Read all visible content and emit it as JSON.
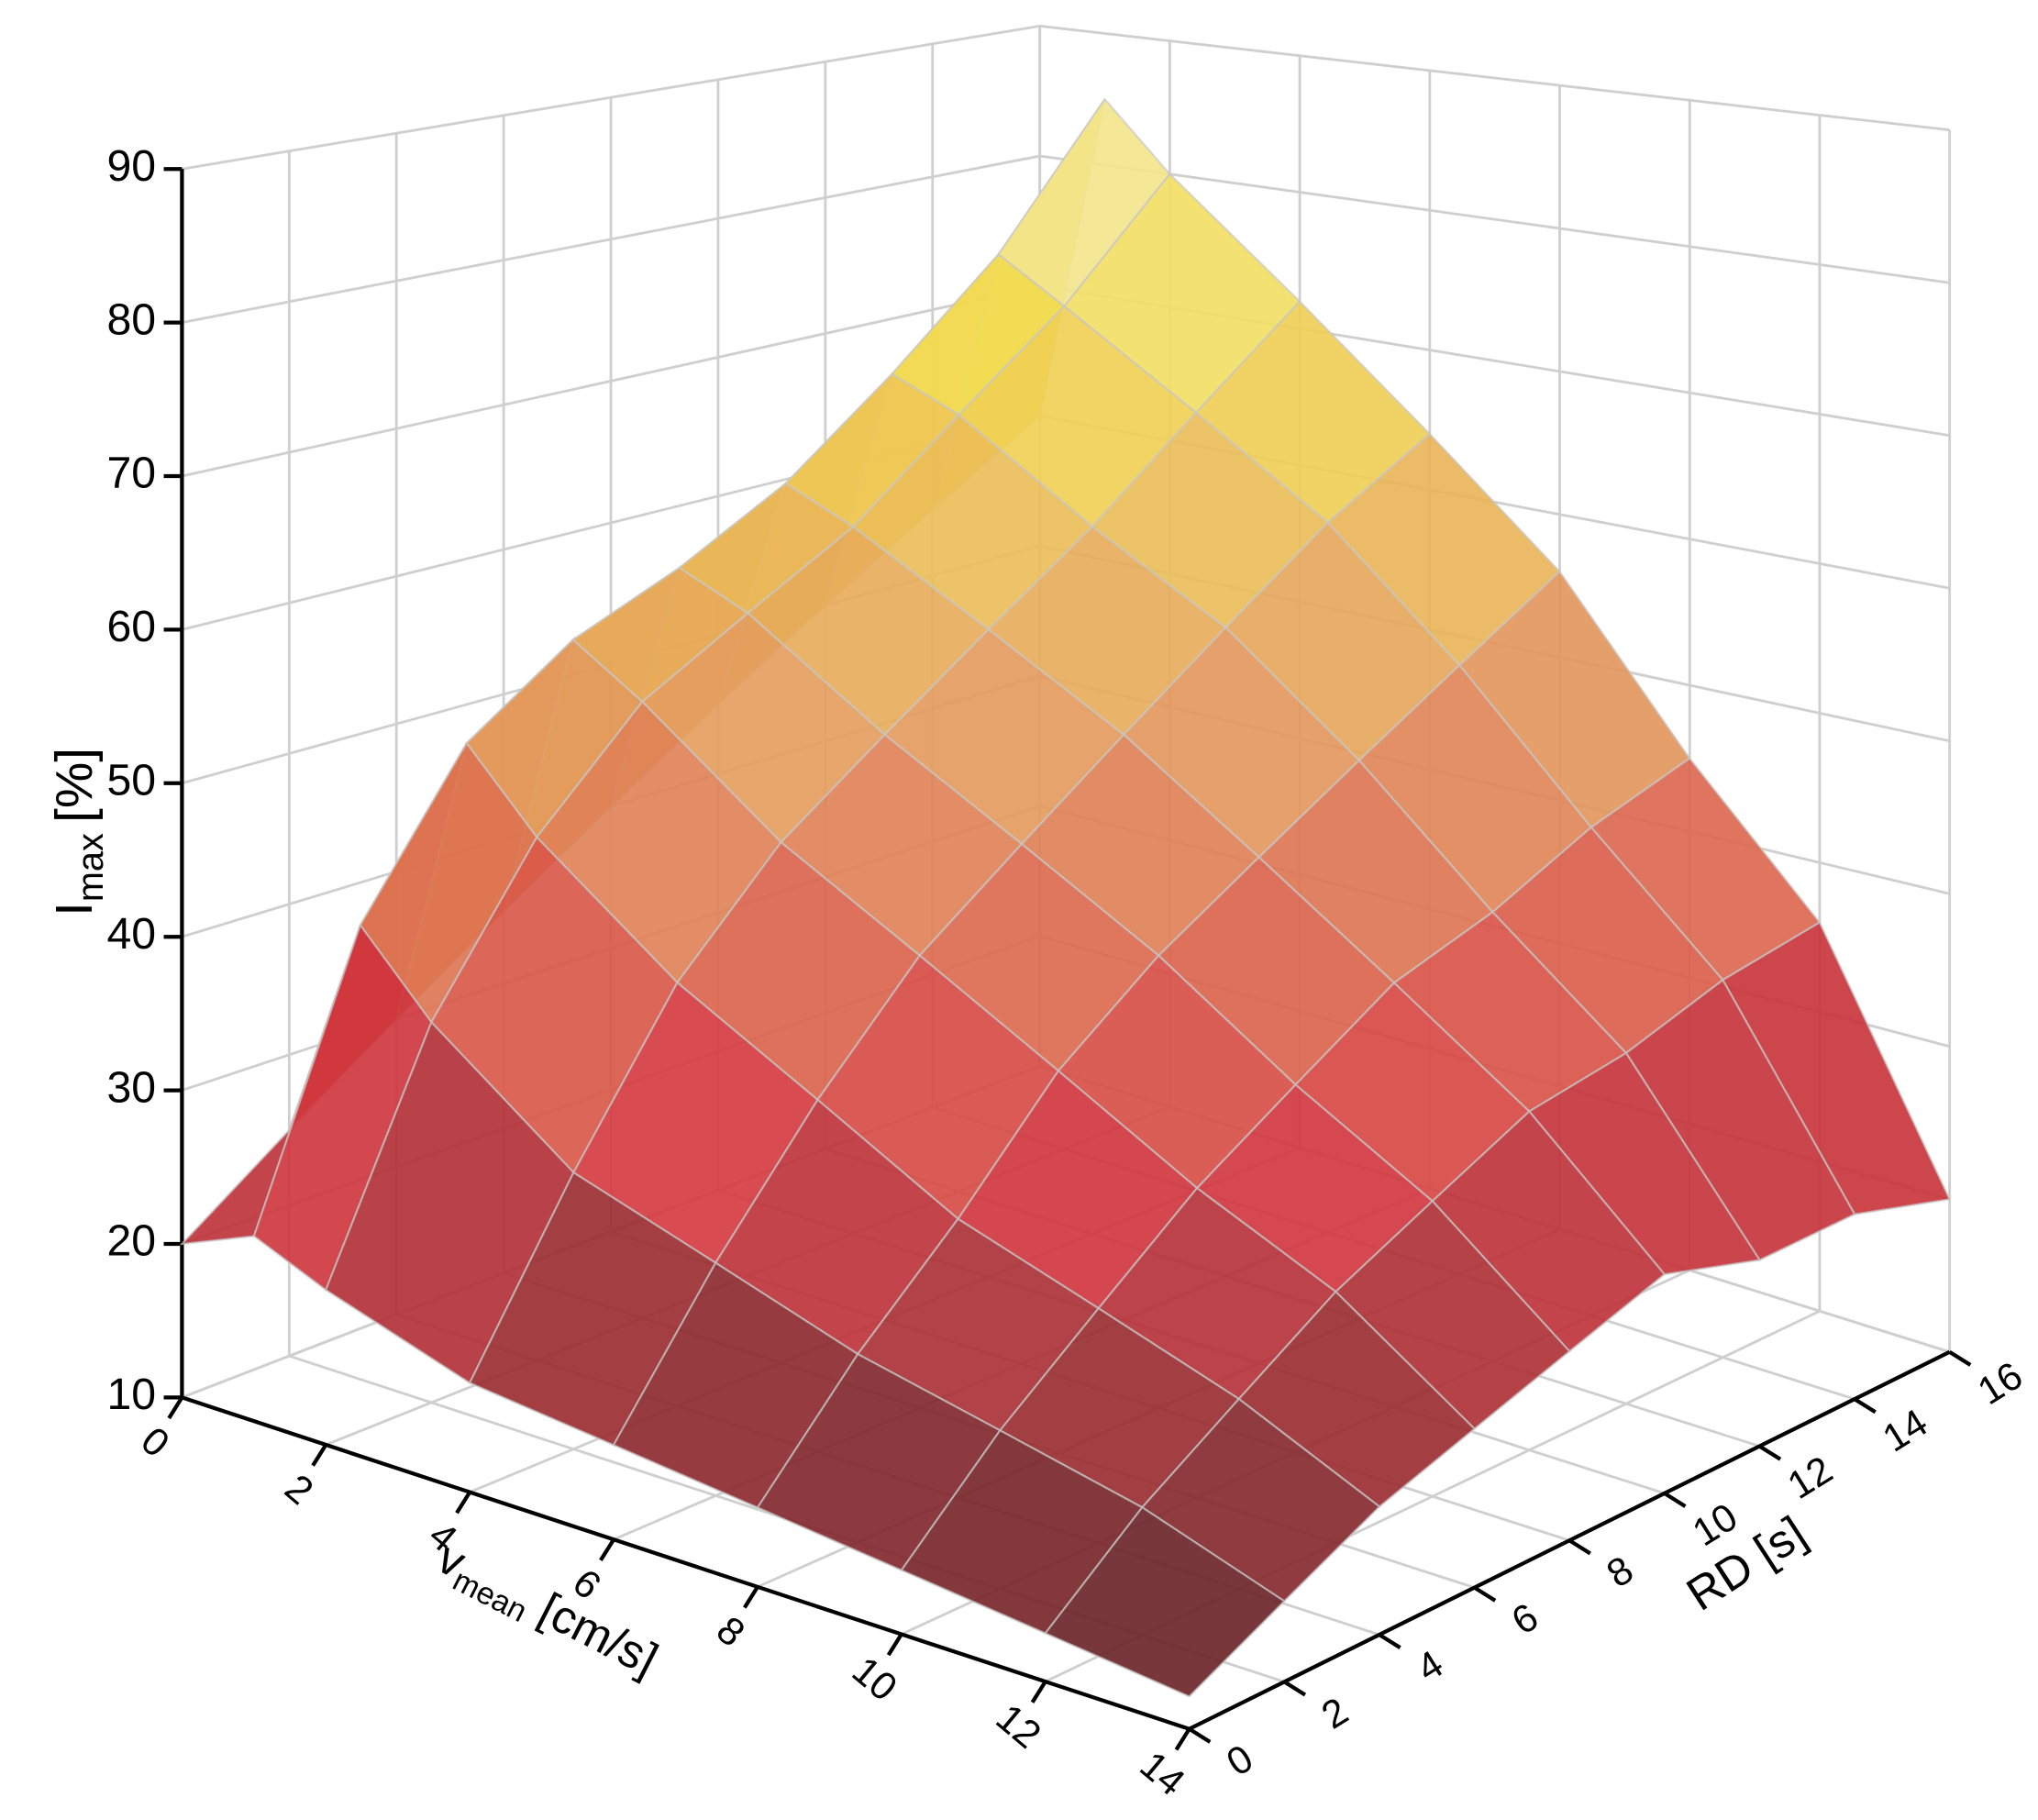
{
  "chart_data": {
    "type": "surface",
    "x_label": {
      "main": "v",
      "sub": "mean",
      "unit": "[cm/s]"
    },
    "y_label": "RD [s]",
    "z_label": {
      "main": "I",
      "sub": "max",
      "unit": "[%]"
    },
    "x": [
      0,
      1,
      2,
      4,
      6,
      8,
      10,
      12,
      14
    ],
    "y": [
      0,
      2,
      4,
      6,
      8,
      10,
      12,
      14,
      16
    ],
    "z": [
      [
        20,
        22,
        20,
        17,
        16,
        15,
        14,
        13,
        12
      ],
      [
        25,
        40,
        35,
        28,
        25,
        22,
        20,
        18,
        15
      ],
      [
        30,
        50,
        45,
        38,
        33,
        28,
        25,
        22,
        18
      ],
      [
        35,
        55,
        52,
        45,
        40,
        35,
        30,
        26,
        20
      ],
      [
        40,
        58,
        56,
        50,
        45,
        40,
        34,
        29,
        22
      ],
      [
        45,
        62,
        60,
        55,
        50,
        44,
        38,
        32,
        24
      ],
      [
        50,
        68,
        66,
        60,
        55,
        48,
        40,
        33,
        22
      ],
      [
        55,
        75,
        72,
        66,
        60,
        52,
        43,
        35,
        22
      ],
      [
        60,
        85,
        80,
        72,
        64,
        56,
        45,
        36,
        20
      ]
    ],
    "xlim": [
      0,
      14
    ],
    "xticks": [
      0,
      2,
      4,
      6,
      8,
      10,
      12,
      14
    ],
    "ylim": [
      0,
      16
    ],
    "yticks": [
      0,
      2,
      4,
      6,
      8,
      10,
      12,
      14,
      16
    ],
    "zlim": [
      10,
      90
    ],
    "zticks": [
      10,
      20,
      30,
      40,
      50,
      60,
      70,
      80,
      90
    ],
    "colormap": [
      "#4a1c1e",
      "#d3343c",
      "#e39a5c",
      "#f2dc50",
      "#f4f2e6"
    ],
    "grid": true
  }
}
